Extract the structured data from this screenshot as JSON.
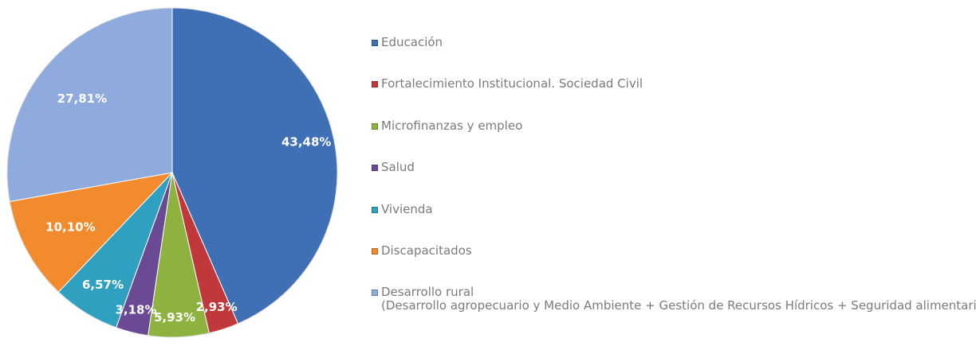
{
  "chart_data": {
    "type": "pie",
    "start_angle": "12 o'clock, clockwise",
    "slices": [
      {
        "category": "Educación",
        "value": 43.48,
        "label": "43,48%",
        "color": "#3F6FB4"
      },
      {
        "category": "Fortalecimiento Institucional. Sociedad Civil",
        "value": 2.93,
        "label": "2,93%",
        "color": "#C0383A"
      },
      {
        "category": "Microfinanzas y empleo",
        "value": 5.93,
        "label": "5,93%",
        "color": "#8DB23F"
      },
      {
        "category": "Salud",
        "value": 3.18,
        "label": "3,18%",
        "color": "#6A4A94"
      },
      {
        "category": "Vivienda",
        "value": 6.57,
        "label": "6,57%",
        "color": "#2FA0BF"
      },
      {
        "category": "Discapacitados",
        "value": 10.1,
        "label": "10,10%",
        "color": "#F28A2E"
      },
      {
        "category": "Desarrollo rural",
        "value": 27.81,
        "label": "27,81%",
        "color": "#8FAADC"
      }
    ],
    "legend": {
      "placement": "right",
      "entries": [
        {
          "text": "Educación",
          "color": "#3F6FB4"
        },
        {
          "text": "Fortalecimiento Institucional. Sociedad Civil",
          "color": "#C0383A"
        },
        {
          "text": "Microfinanzas y empleo",
          "color": "#8DB23F"
        },
        {
          "text": "Salud",
          "color": "#6A4A94"
        },
        {
          "text": "Vivienda",
          "color": "#2FA0BF"
        },
        {
          "text": "Discapacitados",
          "color": "#F28A2E"
        },
        {
          "text": "Desarrollo rural",
          "subtext": "(Desarrollo agropecuario y Medio Ambiente + Gestión de Recursos Hídricos + Seguridad alimentaria)",
          "color": "#8FAADC"
        }
      ]
    }
  }
}
